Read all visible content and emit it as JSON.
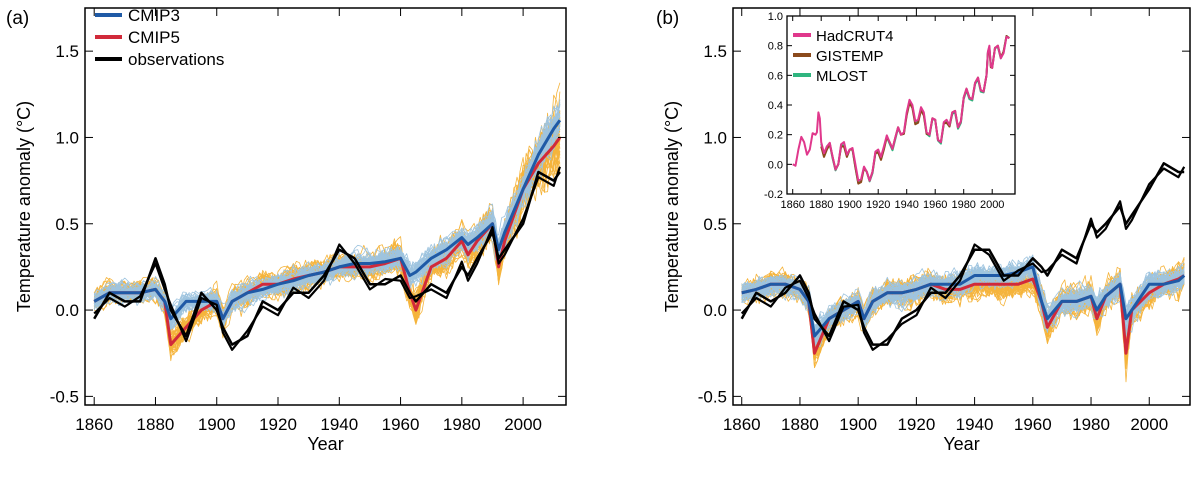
{
  "colors": {
    "cmip3": "#1f5aa6",
    "cmip3_members": "#9ec4df",
    "cmip5": "#d12a3a",
    "cmip5_members": "#f5b43c",
    "observations": "#000000",
    "hadcrut4": "#e0388c",
    "gistemp": "#8b4a1c",
    "mlost": "#2fb57f"
  },
  "chart_data": [
    {
      "type": "line",
      "panel_label": "(a)",
      "xlabel": "Year",
      "ylabel": "Temperature anomaly (°C)",
      "xlim": [
        1857,
        2014
      ],
      "ylim": [
        -0.55,
        1.75
      ],
      "xticks": [
        1860,
        1880,
        1900,
        1920,
        1940,
        1960,
        1980,
        2000
      ],
      "xtick_labels": [
        "1860",
        "1880",
        "1900",
        "1920",
        "1940",
        "1960",
        "1980",
        "2000"
      ],
      "yticks": [
        -0.5,
        0.0,
        0.5,
        1.0,
        1.5
      ],
      "ytick_labels": [
        "-0.5",
        "0.0",
        "0.5",
        "1.0",
        "1.5"
      ],
      "legend": {
        "placement": "top-left",
        "entries": [
          {
            "label": "CMIP3",
            "color_key": "cmip3"
          },
          {
            "label": "CMIP5",
            "color_key": "cmip5"
          },
          {
            "label": "observations",
            "color_key": "observations"
          }
        ]
      },
      "x": [
        1860,
        1865,
        1870,
        1875,
        1880,
        1883,
        1885,
        1890,
        1895,
        1900,
        1902,
        1905,
        1910,
        1915,
        1920,
        1925,
        1930,
        1935,
        1940,
        1945,
        1950,
        1955,
        1960,
        1963,
        1965,
        1970,
        1975,
        1980,
        1982,
        1985,
        1990,
        1992,
        1994,
        2000,
        2005,
        2010,
        2012
      ],
      "series": [
        {
          "name": "CMIP3",
          "color_key": "cmip3",
          "values": [
            0.05,
            0.1,
            0.1,
            0.1,
            0.12,
            0.05,
            -0.05,
            0.05,
            0.05,
            0.05,
            -0.05,
            0.05,
            0.1,
            0.12,
            0.15,
            0.17,
            0.2,
            0.22,
            0.25,
            0.27,
            0.27,
            0.28,
            0.3,
            0.2,
            0.22,
            0.3,
            0.35,
            0.42,
            0.38,
            0.42,
            0.5,
            0.35,
            0.45,
            0.7,
            0.9,
            1.05,
            1.1
          ]
        },
        {
          "name": "CMIP5",
          "color_key": "cmip5",
          "values": [
            0.05,
            0.1,
            0.1,
            0.1,
            0.12,
            0.05,
            -0.2,
            -0.1,
            0.0,
            0.05,
            -0.05,
            0.05,
            0.1,
            0.15,
            0.15,
            0.18,
            0.2,
            0.22,
            0.25,
            0.25,
            0.25,
            0.27,
            0.3,
            0.1,
            0.0,
            0.25,
            0.3,
            0.4,
            0.32,
            0.4,
            0.5,
            0.25,
            0.4,
            0.7,
            0.85,
            0.95,
            1.0
          ]
        },
        {
          "name": "observations",
          "color_key": "observations",
          "values": [
            -0.05,
            0.1,
            0.05,
            0.05,
            0.3,
            0.15,
            0.0,
            -0.15,
            0.1,
            0.0,
            -0.1,
            -0.2,
            -0.15,
            0.05,
            0.0,
            0.1,
            0.1,
            0.2,
            0.35,
            0.3,
            0.15,
            0.15,
            0.2,
            0.1,
            0.05,
            0.15,
            0.1,
            0.25,
            0.2,
            0.3,
            0.45,
            0.3,
            0.35,
            0.5,
            0.8,
            0.75,
            0.8
          ]
        }
      ],
      "ensembles": [
        {
          "color_key": "cmip5_members",
          "center_series": "CMIP5",
          "spread": [
            0.12,
            0.12,
            0.12,
            0.12,
            0.12,
            0.13,
            0.15,
            0.15,
            0.15,
            0.15,
            0.15,
            0.15,
            0.15,
            0.15,
            0.15,
            0.15,
            0.15,
            0.15,
            0.15,
            0.15,
            0.15,
            0.16,
            0.17,
            0.18,
            0.2,
            0.18,
            0.18,
            0.18,
            0.2,
            0.2,
            0.22,
            0.25,
            0.25,
            0.3,
            0.35,
            0.38,
            0.4
          ]
        },
        {
          "color_key": "cmip3_members",
          "center_series": "CMIP3",
          "spread": [
            0.1,
            0.1,
            0.1,
            0.1,
            0.1,
            0.12,
            0.13,
            0.12,
            0.12,
            0.12,
            0.12,
            0.12,
            0.12,
            0.12,
            0.12,
            0.12,
            0.12,
            0.12,
            0.12,
            0.12,
            0.12,
            0.13,
            0.13,
            0.15,
            0.15,
            0.14,
            0.14,
            0.14,
            0.15,
            0.15,
            0.17,
            0.18,
            0.18,
            0.2,
            0.22,
            0.24,
            0.25
          ]
        }
      ],
      "grid": false
    },
    {
      "type": "line",
      "panel_label": "(b)",
      "xlabel": "Year",
      "ylabel": "Temperature anomaly (°C)",
      "xlim": [
        1857,
        2014
      ],
      "ylim": [
        -0.55,
        1.75
      ],
      "xticks": [
        1860,
        1880,
        1900,
        1920,
        1940,
        1960,
        1980,
        2000
      ],
      "xtick_labels": [
        "1860",
        "1880",
        "1900",
        "1920",
        "1940",
        "1960",
        "1980",
        "2000"
      ],
      "yticks": [
        -0.5,
        0.0,
        0.5,
        1.0,
        1.5
      ],
      "ytick_labels": [
        "-0.5",
        "0.0",
        "0.5",
        "1.0",
        "1.5"
      ],
      "x": [
        1860,
        1865,
        1870,
        1875,
        1880,
        1883,
        1885,
        1890,
        1895,
        1900,
        1902,
        1905,
        1910,
        1915,
        1920,
        1925,
        1930,
        1935,
        1940,
        1945,
        1950,
        1955,
        1960,
        1963,
        1965,
        1970,
        1975,
        1980,
        1982,
        1985,
        1990,
        1992,
        1994,
        2000,
        2005,
        2010,
        2012
      ],
      "series": [
        {
          "name": "CMIP3",
          "color_key": "cmip3",
          "values": [
            0.1,
            0.12,
            0.15,
            0.15,
            0.12,
            0.05,
            -0.15,
            -0.05,
            0.0,
            0.05,
            -0.05,
            0.05,
            0.1,
            0.1,
            0.12,
            0.15,
            0.15,
            0.15,
            0.2,
            0.2,
            0.2,
            0.22,
            0.25,
            0.05,
            -0.05,
            0.05,
            0.05,
            0.08,
            0.0,
            0.08,
            0.15,
            -0.05,
            0.0,
            0.15,
            0.15,
            0.17,
            0.2
          ]
        },
        {
          "name": "CMIP5",
          "color_key": "cmip5",
          "values": [
            0.1,
            0.12,
            0.15,
            0.15,
            0.12,
            0.05,
            -0.25,
            -0.05,
            0.0,
            0.05,
            -0.05,
            0.05,
            0.1,
            0.1,
            0.12,
            0.15,
            0.12,
            0.12,
            0.15,
            0.15,
            0.15,
            0.15,
            0.18,
            0.05,
            -0.1,
            0.05,
            0.05,
            0.08,
            -0.05,
            0.08,
            0.15,
            -0.25,
            0.0,
            0.1,
            0.15,
            0.18,
            0.2
          ]
        },
        {
          "name": "observations",
          "color_key": "observations",
          "values": [
            -0.05,
            0.1,
            0.05,
            0.1,
            0.2,
            0.1,
            -0.05,
            -0.15,
            0.05,
            0.0,
            -0.1,
            -0.2,
            -0.2,
            -0.05,
            0.0,
            0.1,
            0.1,
            0.2,
            0.35,
            0.35,
            0.2,
            0.2,
            0.3,
            0.25,
            0.2,
            0.35,
            0.3,
            0.5,
            0.45,
            0.5,
            0.6,
            0.5,
            0.55,
            0.7,
            0.85,
            0.8,
            0.8
          ]
        }
      ],
      "ensembles": [
        {
          "color_key": "cmip5_members",
          "center_series": "CMIP5",
          "spread": [
            0.12,
            0.12,
            0.12,
            0.12,
            0.12,
            0.13,
            0.15,
            0.15,
            0.15,
            0.15,
            0.15,
            0.15,
            0.15,
            0.15,
            0.15,
            0.15,
            0.15,
            0.15,
            0.15,
            0.15,
            0.15,
            0.15,
            0.15,
            0.17,
            0.18,
            0.16,
            0.16,
            0.16,
            0.17,
            0.17,
            0.18,
            0.2,
            0.18,
            0.18,
            0.18,
            0.18,
            0.18
          ]
        },
        {
          "color_key": "cmip3_members",
          "center_series": "CMIP3",
          "spread": [
            0.1,
            0.1,
            0.1,
            0.1,
            0.1,
            0.12,
            0.13,
            0.12,
            0.12,
            0.12,
            0.12,
            0.12,
            0.12,
            0.12,
            0.12,
            0.12,
            0.12,
            0.12,
            0.12,
            0.12,
            0.12,
            0.12,
            0.13,
            0.14,
            0.15,
            0.13,
            0.13,
            0.13,
            0.14,
            0.14,
            0.15,
            0.17,
            0.15,
            0.15,
            0.15,
            0.15,
            0.15
          ]
        }
      ],
      "grid": false
    },
    {
      "type": "line",
      "panel_label": "",
      "inset_of": "(b)",
      "xlim": [
        1856,
        2016
      ],
      "ylim": [
        -0.2,
        1.0
      ],
      "xticks": [
        1860,
        1880,
        1900,
        1920,
        1940,
        1960,
        1980,
        2000
      ],
      "xtick_labels": [
        "1860",
        "1880",
        "1900",
        "1920",
        "1940",
        "1960",
        "1980",
        "2000"
      ],
      "yticks": [
        -0.2,
        0.0,
        0.2,
        0.4,
        0.6,
        0.8,
        1.0
      ],
      "ytick_labels": [
        "-0.2",
        "0.0",
        "0.2",
        "0.4",
        "0.6",
        "0.8",
        "1.0"
      ],
      "legend": {
        "placement": "top-left",
        "entries": [
          {
            "label": "HadCRUT4",
            "color_key": "hadcrut4"
          },
          {
            "label": "GISTEMP",
            "color_key": "gistemp"
          },
          {
            "label": "MLOST",
            "color_key": "mlost"
          }
        ]
      },
      "x": [
        1860,
        1864,
        1868,
        1872,
        1876,
        1878,
        1880,
        1884,
        1888,
        1892,
        1896,
        1900,
        1904,
        1908,
        1912,
        1916,
        1920,
        1924,
        1928,
        1932,
        1936,
        1940,
        1944,
        1948,
        1952,
        1956,
        1960,
        1964,
        1968,
        1972,
        1976,
        1980,
        1984,
        1988,
        1992,
        1996,
        1998,
        2000,
        2004,
        2008,
        2012
      ],
      "series": [
        {
          "name": "HadCRUT4",
          "color_key": "hadcrut4",
          "values": [
            0.0,
            0.1,
            0.15,
            0.1,
            0.2,
            0.35,
            0.15,
            0.12,
            0.05,
            0.0,
            0.15,
            0.1,
            0.0,
            -0.1,
            -0.05,
            -0.05,
            0.1,
            0.12,
            0.15,
            0.18,
            0.2,
            0.35,
            0.4,
            0.3,
            0.35,
            0.2,
            0.3,
            0.15,
            0.3,
            0.35,
            0.25,
            0.45,
            0.45,
            0.55,
            0.5,
            0.6,
            0.8,
            0.65,
            0.8,
            0.75,
            0.85
          ]
        },
        {
          "name": "GISTEMP",
          "color_key": "gistemp",
          "values": [
            null,
            null,
            null,
            null,
            null,
            null,
            0.12,
            0.1,
            0.05,
            0.0,
            0.12,
            0.1,
            -0.02,
            -0.12,
            -0.05,
            -0.05,
            0.08,
            0.1,
            0.15,
            0.18,
            0.2,
            0.33,
            0.38,
            0.28,
            0.33,
            0.2,
            0.3,
            0.15,
            0.28,
            0.35,
            0.25,
            0.45,
            0.45,
            0.55,
            0.5,
            0.6,
            0.78,
            0.65,
            0.8,
            0.76,
            0.85
          ]
        },
        {
          "name": "MLOST",
          "color_key": "mlost",
          "values": [
            null,
            null,
            null,
            null,
            null,
            null,
            0.14,
            0.12,
            0.04,
            0.0,
            0.13,
            0.1,
            -0.02,
            -0.11,
            -0.05,
            -0.06,
            0.09,
            0.11,
            0.14,
            0.17,
            0.2,
            0.34,
            0.39,
            0.29,
            0.34,
            0.19,
            0.3,
            0.14,
            0.29,
            0.34,
            0.24,
            0.44,
            0.44,
            0.54,
            0.49,
            0.6,
            0.79,
            0.66,
            0.79,
            0.76,
            0.85
          ]
        }
      ],
      "grid": false
    }
  ]
}
